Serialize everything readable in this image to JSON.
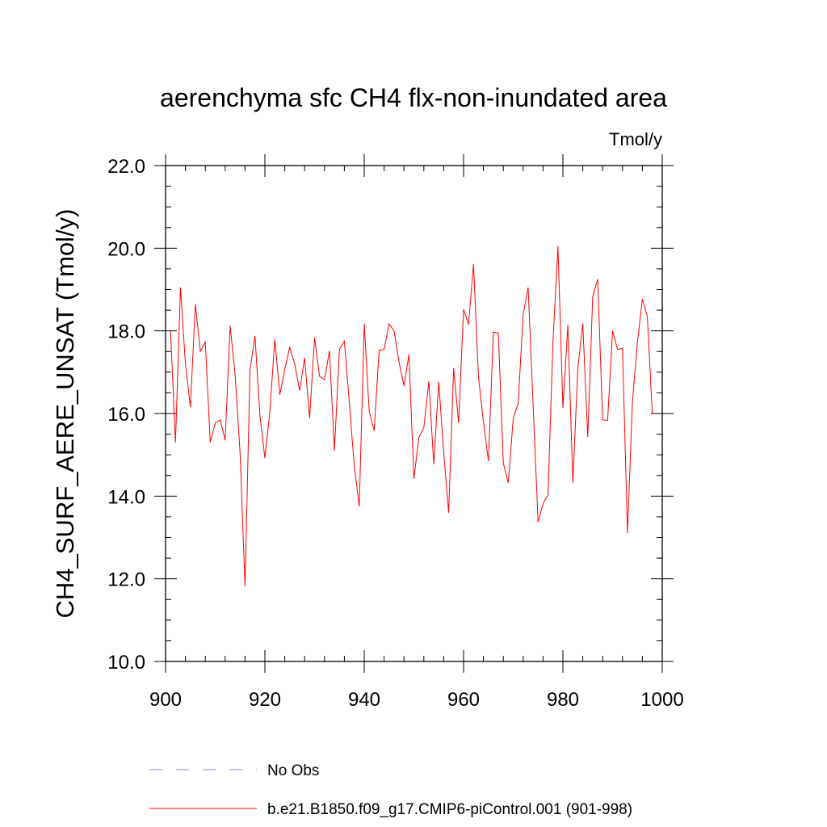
{
  "chart_data": {
    "type": "line",
    "title": "aerenchyma sfc CH4 flx-non-inundated area",
    "units": "Tmol/y",
    "xlabel": "",
    "ylabel": "CH4_SURF_AERE_UNSAT  (Tmol/y)",
    "xlim": [
      900,
      1000
    ],
    "ylim": [
      10.0,
      22.0
    ],
    "x_ticks": [
      900,
      920,
      940,
      960,
      980,
      1000
    ],
    "x_tick_labels": [
      "900",
      "920",
      "940",
      "960",
      "980",
      "1000"
    ],
    "y_ticks": [
      10,
      12,
      14,
      16,
      18,
      20,
      22
    ],
    "y_tick_labels": [
      "10.0",
      "12.0",
      "14.0",
      "16.0",
      "18.0",
      "20.0",
      "22.0"
    ],
    "grid": false,
    "series": [
      {
        "name": "b.e21.B1850.f09_g17.CMIP6-piControl.001 (901-998)",
        "color": "#ff0000",
        "style": "solid",
        "x_start": 901,
        "values": [
          18.0,
          15.3,
          19.05,
          17.2,
          16.15,
          18.65,
          17.5,
          17.73,
          15.3,
          15.77,
          15.85,
          15.35,
          18.12,
          16.95,
          15.05,
          11.82,
          17.05,
          17.88,
          15.95,
          14.92,
          16.05,
          17.8,
          16.45,
          17.07,
          17.6,
          17.2,
          16.55,
          17.35,
          15.88,
          17.83,
          16.9,
          16.82,
          17.52,
          15.1,
          17.55,
          17.75,
          16.25,
          14.73,
          13.75,
          18.18,
          16.05,
          15.58,
          17.53,
          17.55,
          18.17,
          18.0,
          17.25,
          16.67,
          17.43,
          14.42,
          15.42,
          15.66,
          16.78,
          14.77,
          16.77,
          15.05,
          13.6,
          17.1,
          15.77,
          18.52,
          18.15,
          19.62,
          16.88,
          15.8,
          14.85,
          17.97,
          17.95,
          14.8,
          14.32,
          15.88,
          16.25,
          18.4,
          19.05,
          16.2,
          13.37,
          13.82,
          14.03,
          17.75,
          20.05,
          16.13,
          18.15,
          14.32,
          17.08,
          18.18,
          15.43,
          18.83,
          19.25,
          15.85,
          15.83,
          18.0,
          17.55,
          17.58,
          13.1,
          16.28,
          17.72,
          18.77,
          18.35,
          16.0
        ]
      },
      {
        "name": "No Obs",
        "color": "#8b8bd4",
        "style": "dashed",
        "values": []
      }
    ],
    "legend_position": "bottom"
  }
}
